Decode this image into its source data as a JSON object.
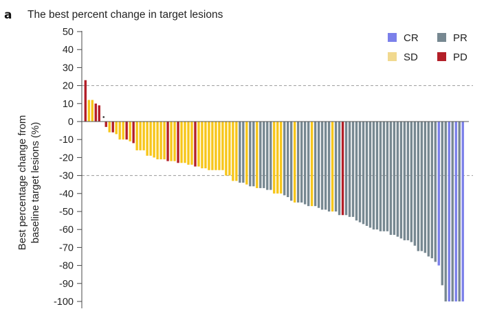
{
  "chart_data": {
    "type": "bar",
    "panel_letter": "a",
    "title": "The best percent change in target lesions",
    "ylabel_lines": [
      "Best percentage change from",
      "baseline target lesions (%)"
    ],
    "xlabel": "",
    "ylim": [
      -100,
      50
    ],
    "yticks": [
      50,
      40,
      30,
      20,
      10,
      0,
      -10,
      -20,
      -30,
      -40,
      -50,
      -60,
      -70,
      -80,
      -90,
      -100
    ],
    "ytick_labels": [
      "50",
      "40",
      "30",
      "20",
      "10",
      "0",
      "-10",
      "-20",
      "-30",
      "-40",
      "-50",
      "-60",
      "-70",
      "-80",
      "-90",
      "-100"
    ],
    "reference_lines": [
      20,
      -30
    ],
    "grid": false,
    "legend_position": "top-right",
    "legend": [
      {
        "key": "CR",
        "label": "CR",
        "color": "#7b80ea"
      },
      {
        "key": "PR",
        "label": "PR",
        "color": "#778891"
      },
      {
        "key": "SD",
        "label": "SD",
        "color": "#f1d98f"
      },
      {
        "key": "PD",
        "label": "PD",
        "color": "#b31f28"
      }
    ],
    "bar_colors": {
      "CR": "#7b80ea",
      "PR": "#778891",
      "SD": "#f7c61a",
      "PD": "#b31f28"
    },
    "markers": [
      {
        "index": 5,
        "symbol": "asterisk"
      }
    ],
    "bars": [
      {
        "cat": "PD",
        "value": 23
      },
      {
        "cat": "SD",
        "value": 12
      },
      {
        "cat": "SD",
        "value": 12
      },
      {
        "cat": "PD",
        "value": 10
      },
      {
        "cat": "PD",
        "value": 9
      },
      {
        "cat": "none",
        "value": 0
      },
      {
        "cat": "PD",
        "value": -3
      },
      {
        "cat": "SD",
        "value": -6
      },
      {
        "cat": "PD",
        "value": -6
      },
      {
        "cat": "SD",
        "value": -7
      },
      {
        "cat": "SD",
        "value": -10
      },
      {
        "cat": "SD",
        "value": -10
      },
      {
        "cat": "PD",
        "value": -10
      },
      {
        "cat": "SD",
        "value": -11
      },
      {
        "cat": "PD",
        "value": -12
      },
      {
        "cat": "SD",
        "value": -16
      },
      {
        "cat": "SD",
        "value": -16
      },
      {
        "cat": "SD",
        "value": -16
      },
      {
        "cat": "SD",
        "value": -19
      },
      {
        "cat": "SD",
        "value": -19
      },
      {
        "cat": "SD",
        "value": -20
      },
      {
        "cat": "SD",
        "value": -21
      },
      {
        "cat": "SD",
        "value": -21
      },
      {
        "cat": "SD",
        "value": -21
      },
      {
        "cat": "PD",
        "value": -22
      },
      {
        "cat": "SD",
        "value": -22
      },
      {
        "cat": "SD",
        "value": -22
      },
      {
        "cat": "PD",
        "value": -23
      },
      {
        "cat": "SD",
        "value": -23
      },
      {
        "cat": "SD",
        "value": -23
      },
      {
        "cat": "SD",
        "value": -24
      },
      {
        "cat": "SD",
        "value": -24
      },
      {
        "cat": "PD",
        "value": -25
      },
      {
        "cat": "SD",
        "value": -25
      },
      {
        "cat": "SD",
        "value": -26
      },
      {
        "cat": "SD",
        "value": -26
      },
      {
        "cat": "SD",
        "value": -27
      },
      {
        "cat": "SD",
        "value": -27
      },
      {
        "cat": "SD",
        "value": -27
      },
      {
        "cat": "SD",
        "value": -27
      },
      {
        "cat": "SD",
        "value": -27
      },
      {
        "cat": "SD",
        "value": -30
      },
      {
        "cat": "SD",
        "value": -30
      },
      {
        "cat": "SD",
        "value": -33
      },
      {
        "cat": "SD",
        "value": -33
      },
      {
        "cat": "PR",
        "value": -34
      },
      {
        "cat": "PR",
        "value": -34
      },
      {
        "cat": "SD",
        "value": -35
      },
      {
        "cat": "PR",
        "value": -36
      },
      {
        "cat": "PR",
        "value": -36
      },
      {
        "cat": "SD",
        "value": -37
      },
      {
        "cat": "PR",
        "value": -37
      },
      {
        "cat": "PR",
        "value": -37
      },
      {
        "cat": "PR",
        "value": -38
      },
      {
        "cat": "PR",
        "value": -38
      },
      {
        "cat": "SD",
        "value": -40
      },
      {
        "cat": "SD",
        "value": -40
      },
      {
        "cat": "SD",
        "value": -40
      },
      {
        "cat": "PR",
        "value": -41
      },
      {
        "cat": "PR",
        "value": -42
      },
      {
        "cat": "PR",
        "value": -44
      },
      {
        "cat": "SD",
        "value": -45
      },
      {
        "cat": "PR",
        "value": -45
      },
      {
        "cat": "PR",
        "value": -45
      },
      {
        "cat": "PR",
        "value": -46
      },
      {
        "cat": "PR",
        "value": -47
      },
      {
        "cat": "SD",
        "value": -47
      },
      {
        "cat": "PR",
        "value": -47
      },
      {
        "cat": "PR",
        "value": -48
      },
      {
        "cat": "PR",
        "value": -49
      },
      {
        "cat": "PR",
        "value": -49
      },
      {
        "cat": "PR",
        "value": -50
      },
      {
        "cat": "SD",
        "value": -50
      },
      {
        "cat": "PR",
        "value": -50
      },
      {
        "cat": "PR",
        "value": -52
      },
      {
        "cat": "PD",
        "value": -52
      },
      {
        "cat": "PR",
        "value": -52
      },
      {
        "cat": "PR",
        "value": -53
      },
      {
        "cat": "PR",
        "value": -53
      },
      {
        "cat": "PR",
        "value": -55
      },
      {
        "cat": "PR",
        "value": -56
      },
      {
        "cat": "PR",
        "value": -57
      },
      {
        "cat": "PR",
        "value": -58
      },
      {
        "cat": "PR",
        "value": -59
      },
      {
        "cat": "PR",
        "value": -60
      },
      {
        "cat": "PR",
        "value": -60
      },
      {
        "cat": "PR",
        "value": -61
      },
      {
        "cat": "PR",
        "value": -61
      },
      {
        "cat": "PR",
        "value": -61
      },
      {
        "cat": "PR",
        "value": -63
      },
      {
        "cat": "PR",
        "value": -63
      },
      {
        "cat": "PR",
        "value": -64
      },
      {
        "cat": "PR",
        "value": -65
      },
      {
        "cat": "PR",
        "value": -66
      },
      {
        "cat": "PR",
        "value": -66
      },
      {
        "cat": "PR",
        "value": -67
      },
      {
        "cat": "PR",
        "value": -69
      },
      {
        "cat": "PR",
        "value": -72
      },
      {
        "cat": "PR",
        "value": -72
      },
      {
        "cat": "PR",
        "value": -73
      },
      {
        "cat": "PR",
        "value": -75
      },
      {
        "cat": "PR",
        "value": -76
      },
      {
        "cat": "PR",
        "value": -78
      },
      {
        "cat": "CR",
        "value": -80
      },
      {
        "cat": "PR",
        "value": -91
      },
      {
        "cat": "PR",
        "value": -100
      },
      {
        "cat": "CR",
        "value": -100
      },
      {
        "cat": "PR",
        "value": -100
      },
      {
        "cat": "CR",
        "value": -100
      },
      {
        "cat": "PR",
        "value": -100
      },
      {
        "cat": "CR",
        "value": -100
      }
    ]
  }
}
